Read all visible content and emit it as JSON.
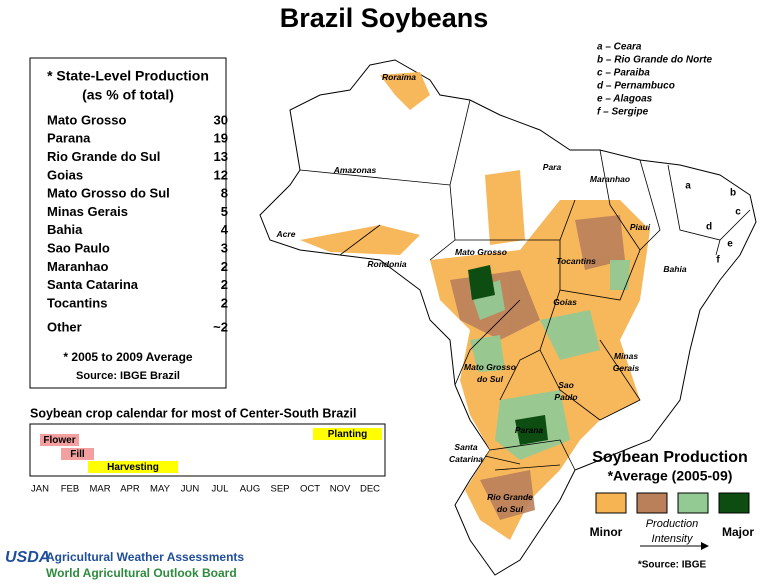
{
  "title": "Brazil Soybeans",
  "production_table": {
    "heading": [
      "* State-Level Production",
      "(as % of total)"
    ],
    "rows": [
      [
        "Mato Grosso",
        30
      ],
      [
        "Parana",
        19
      ],
      [
        "Rio Grande do Sul",
        13
      ],
      [
        "Goias",
        12
      ],
      [
        "Mato Grosso do Sul",
        8
      ],
      [
        "Minas Gerais",
        5
      ],
      [
        "Bahia",
        4
      ],
      [
        "Sao Paulo",
        3
      ],
      [
        "Maranhao",
        2
      ],
      [
        "Santa Catarina",
        2
      ],
      [
        "Tocantins",
        2
      ],
      [
        "Other",
        "~2"
      ]
    ],
    "note": "* 2005 to 2009 Average",
    "source": "Source: IBGE Brazil"
  },
  "crop_calendar": {
    "title": "Soybean crop calendar for most of Center-South Brazil",
    "months": [
      "JAN",
      "FEB",
      "MAR",
      "APR",
      "MAY",
      "JUN",
      "JUL",
      "AUG",
      "SEP",
      "OCT",
      "NOV",
      "DEC"
    ],
    "stages": [
      {
        "name": "Flower",
        "color": "#f4a0a0",
        "start": 0.5,
        "end": 1.8
      },
      {
        "name": "Fill",
        "color": "#f4a0a0",
        "start": 1.2,
        "end": 2.3
      },
      {
        "name": "Harvesting",
        "color": "#ffff00",
        "start": 2.1,
        "end": 5.1
      },
      {
        "name": "Planting",
        "color": "#ffff00",
        "start": 9.6,
        "end": 11.9
      }
    ]
  },
  "map": {
    "state_labels": [
      [
        "Roraima"
      ],
      [
        "Amazonas"
      ],
      [
        "Para"
      ],
      [
        "Maranhao"
      ],
      [
        "Piaui"
      ],
      [
        "Acre"
      ],
      [
        "Rondonia"
      ],
      [
        "Mato Grosso"
      ],
      [
        "Tocantins"
      ],
      [
        "Bahia"
      ],
      [
        "Goias"
      ],
      [
        "Minas",
        "Gerais"
      ],
      [
        "Mato Grosso",
        "do Sul"
      ],
      [
        "Sao",
        "Paulo"
      ],
      [
        "Parana"
      ],
      [
        "Santa",
        "Catarina"
      ],
      [
        "Rio Grande",
        "do Sul"
      ]
    ],
    "letter_labels": [
      "a",
      "b",
      "c",
      "d",
      "e",
      "f"
    ],
    "key": [
      "a – Ceara",
      "b – Rio Grande do Norte",
      "c – Paraiba",
      "d – Pernambuco",
      "e – Alagoas",
      "f – Sergipe"
    ]
  },
  "legend": {
    "title": "Soybean Production",
    "subtitle": "*Average (2005-09)",
    "colors": [
      "#f7b453",
      "#b9805a",
      "#93c993",
      "#0d4d12"
    ],
    "minor": "Minor",
    "arrow_label": [
      "Production",
      "Intensity"
    ],
    "major": "Major",
    "source": "*Source: IBGE"
  },
  "footer": {
    "logo": "USDA",
    "line1": "Agricultural Weather Assessments",
    "line2": "World Agricultural Outlook Board"
  }
}
